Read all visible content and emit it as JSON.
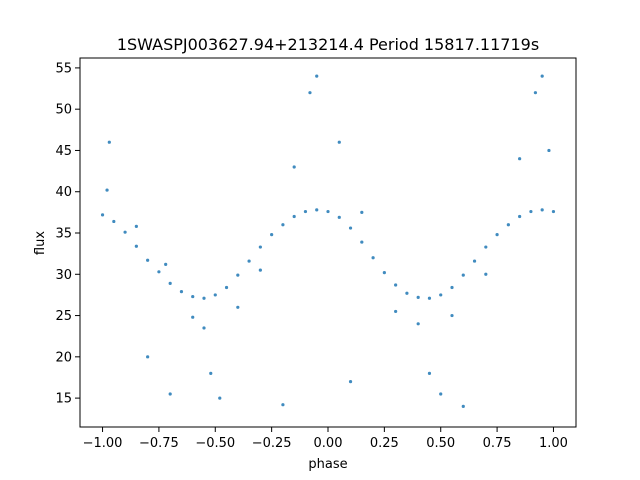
{
  "chart_data": {
    "type": "scatter",
    "title": "1SWASPJ003627.94+213214.4 Period 15817.11719s",
    "xlabel": "phase",
    "ylabel": "flux",
    "xlim": [
      -1.1,
      1.1
    ],
    "ylim": [
      11.5,
      56.2
    ],
    "x_ticks": [
      -1.0,
      -0.75,
      -0.5,
      -0.25,
      0.0,
      0.25,
      0.5,
      0.75,
      1.0
    ],
    "x_tick_labels": [
      "−1.00",
      "−0.75",
      "−0.50",
      "−0.25",
      "0.00",
      "0.25",
      "0.50",
      "0.75",
      "1.00"
    ],
    "y_ticks": [
      15,
      20,
      25,
      30,
      35,
      40,
      45,
      50,
      55
    ],
    "y_tick_labels": [
      "15",
      "20",
      "25",
      "30",
      "35",
      "40",
      "45",
      "50",
      "55"
    ],
    "grid": false,
    "legend": "none",
    "series": [
      {
        "marker": "dot",
        "color": "#1f77b4",
        "points": [
          [
            -1.0,
            37.2
          ],
          [
            -0.95,
            36.4
          ],
          [
            -0.9,
            35.1
          ],
          [
            -0.85,
            33.4
          ],
          [
            -0.8,
            31.7
          ],
          [
            -0.75,
            30.3
          ],
          [
            -0.7,
            28.9
          ],
          [
            -0.65,
            27.9
          ],
          [
            -0.6,
            27.3
          ],
          [
            -0.55,
            27.1
          ],
          [
            -0.5,
            27.5
          ],
          [
            -0.45,
            28.4
          ],
          [
            -0.4,
            29.9
          ],
          [
            -0.35,
            31.6
          ],
          [
            -0.3,
            33.3
          ],
          [
            -0.25,
            34.8
          ],
          [
            -0.2,
            36.0
          ],
          [
            -0.15,
            37.0
          ],
          [
            -0.1,
            37.6
          ],
          [
            -0.05,
            37.8
          ],
          [
            0.0,
            37.6
          ],
          [
            0.05,
            36.9
          ],
          [
            0.1,
            35.6
          ],
          [
            0.15,
            33.9
          ],
          [
            0.2,
            32.0
          ],
          [
            0.25,
            30.2
          ],
          [
            0.3,
            28.7
          ],
          [
            0.35,
            27.7
          ],
          [
            0.4,
            27.2
          ],
          [
            0.45,
            27.1
          ],
          [
            0.5,
            27.5
          ],
          [
            0.55,
            28.4
          ],
          [
            0.6,
            29.9
          ],
          [
            0.65,
            31.6
          ],
          [
            0.7,
            33.3
          ],
          [
            0.75,
            34.8
          ],
          [
            0.8,
            36.0
          ],
          [
            0.85,
            37.0
          ],
          [
            0.9,
            37.6
          ],
          [
            0.95,
            37.8
          ],
          [
            1.0,
            37.6
          ],
          [
            -0.98,
            40.2
          ],
          [
            -0.85,
            35.8
          ],
          [
            -0.72,
            31.2
          ],
          [
            -0.6,
            24.8
          ],
          [
            -0.55,
            23.5
          ],
          [
            -0.52,
            18.0
          ],
          [
            -0.48,
            15.0
          ],
          [
            -0.4,
            26.0
          ],
          [
            -0.3,
            30.5
          ],
          [
            -0.15,
            43.0
          ],
          [
            -0.08,
            52.0
          ],
          [
            -0.05,
            54.0
          ],
          [
            0.05,
            46.0
          ],
          [
            0.15,
            37.5
          ],
          [
            0.3,
            25.5
          ],
          [
            0.4,
            24.0
          ],
          [
            0.45,
            18.0
          ],
          [
            0.5,
            15.5
          ],
          [
            0.55,
            25.0
          ],
          [
            0.7,
            30.0
          ],
          [
            0.85,
            44.0
          ],
          [
            0.92,
            52.0
          ],
          [
            0.95,
            54.0
          ],
          [
            -0.97,
            46.0
          ],
          [
            -0.8,
            20.0
          ],
          [
            -0.7,
            15.5
          ],
          [
            -0.2,
            14.2
          ],
          [
            0.1,
            17.0
          ],
          [
            0.6,
            14.0
          ],
          [
            0.98,
            45.0
          ]
        ]
      }
    ]
  }
}
